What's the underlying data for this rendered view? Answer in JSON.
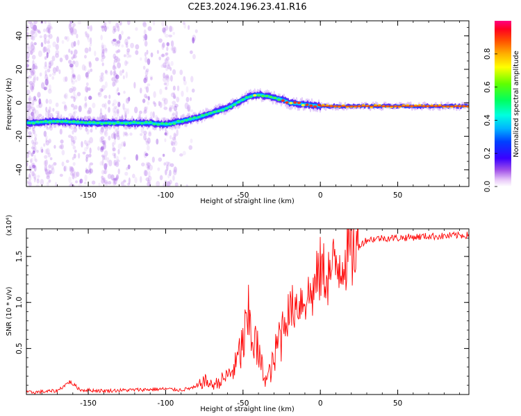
{
  "title": "C2E3.2024.196.23.41.R16",
  "chart_data": [
    {
      "type": "heatmap",
      "xlabel": "Height of straight line (km)",
      "ylabel": "Frequency (Hz)",
      "xlim": [
        -190,
        96
      ],
      "ylim": [
        -50,
        49
      ],
      "xticks": [
        -150,
        -100,
        -50,
        0,
        50
      ],
      "yticks": [
        -40,
        -20,
        0,
        20,
        40
      ],
      "colorbar": {
        "label": "Normalized spectral amplitude",
        "range": [
          0.0,
          1.0
        ],
        "ticks": [
          "0.0",
          "0.2",
          "0.4",
          "0.6",
          "0.8"
        ],
        "colors": [
          "#ffffff",
          "#d6a6f2",
          "#8a2be2",
          "#3b00ff",
          "#0000ff",
          "#00b4ff",
          "#00ffff",
          "#00ff80",
          "#00ff00",
          "#b4ff00",
          "#ffff00",
          "#ffb000",
          "#ff6000",
          "#ff0000",
          "#ff0080"
        ]
      },
      "ridge": {
        "x": [
          -190,
          -170,
          -150,
          -130,
          -110,
          -100,
          -90,
          -80,
          -70,
          -60,
          -50,
          -45,
          -40,
          -35,
          -30,
          -25,
          -20,
          -10,
          0,
          10,
          20,
          30,
          50,
          70,
          96
        ],
        "y": [
          -12,
          -11,
          -12,
          -12,
          -12,
          -13,
          -11,
          -9,
          -6,
          -3,
          2,
          4,
          5,
          4,
          3,
          2,
          0,
          -1,
          -2,
          -2,
          -2,
          -2,
          -2,
          -2,
          -2
        ]
      }
    },
    {
      "type": "line",
      "xlabel": "Height of straight line (km)",
      "ylabel": "SNR (10 * v/v)",
      "y_multiplier": "(x10⁴)",
      "xlim": [
        -190,
        96
      ],
      "ylim": [
        0,
        1.8
      ],
      "xticks": [
        -150,
        -100,
        -50,
        0,
        50
      ],
      "yticks": [
        "0.5",
        "1.0",
        "1.5"
      ],
      "color": "#ff0000",
      "series": [
        {
          "x": [
            -190,
            -170,
            -162,
            -155,
            -140,
            -120,
            -100,
            -90,
            -80,
            -75,
            -70,
            -65,
            -60,
            -55,
            -50,
            -46,
            -42,
            -38,
            -35,
            -30,
            -25,
            -20,
            -15,
            -10,
            -5,
            0,
            5,
            10,
            15,
            20,
            25,
            30,
            40,
            50,
            60,
            70,
            80,
            90,
            96
          ],
          "values": [
            0.02,
            0.04,
            0.14,
            0.05,
            0.04,
            0.05,
            0.06,
            0.05,
            0.08,
            0.15,
            0.1,
            0.14,
            0.2,
            0.3,
            0.55,
            0.8,
            0.55,
            0.3,
            0.15,
            0.35,
            0.75,
            0.9,
            1.0,
            1.05,
            1.1,
            1.35,
            1.3,
            1.4,
            1.5,
            1.55,
            1.62,
            1.68,
            1.7,
            1.7,
            1.71,
            1.72,
            1.72,
            1.73,
            1.73
          ]
        }
      ]
    }
  ]
}
